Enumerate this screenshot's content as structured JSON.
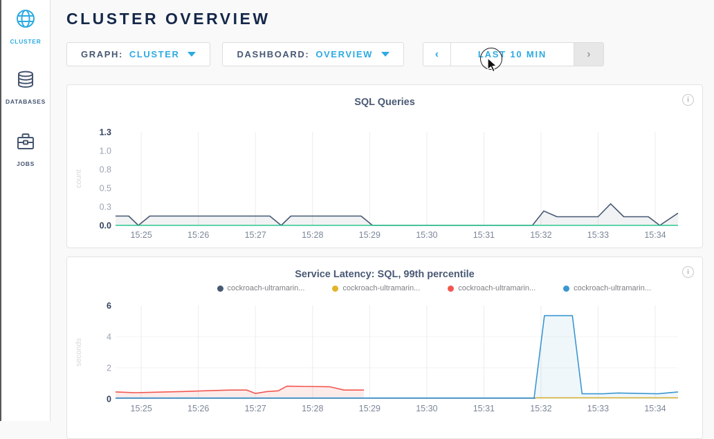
{
  "sidebar": {
    "items": [
      {
        "label": "CLUSTER",
        "icon": "globe-icon",
        "active": true
      },
      {
        "label": "DATABASES",
        "icon": "database-icon",
        "active": false
      },
      {
        "label": "JOBS",
        "icon": "briefcase-icon",
        "active": false
      }
    ]
  },
  "header": {
    "title": "CLUSTER OVERVIEW"
  },
  "controls": {
    "graph": {
      "label": "GRAPH:",
      "value": "CLUSTER"
    },
    "dashboard": {
      "label": "DASHBOARD:",
      "value": "OVERVIEW"
    },
    "time_range": {
      "prev": "‹",
      "label": "LAST 10 MIN",
      "next": "›",
      "next_disabled": true
    }
  },
  "colors": {
    "accent_blue": "#2daae1",
    "navy_text": "#152849",
    "slate": "#475872",
    "series_navy": "#475872",
    "series_green": "#29c78f",
    "series_red": "#f2574f",
    "series_yellow": "#e3b32a",
    "series_blue": "#3a97d1"
  },
  "chart_data": [
    {
      "type": "line",
      "title": "SQL Queries",
      "ylabel": "count",
      "xlabel": "",
      "ylim": [
        0,
        1.3
      ],
      "xlim": [
        24.55,
        34.4
      ],
      "grid": "vertical",
      "hgrid": [],
      "yticks": [
        {
          "v": 0,
          "label": "0.0",
          "strong": true
        },
        {
          "v": 0.26,
          "label": "0.3",
          "strong": false
        },
        {
          "v": 0.52,
          "label": "0.5",
          "strong": false
        },
        {
          "v": 0.78,
          "label": "0.8",
          "strong": false
        },
        {
          "v": 1.04,
          "label": "1.0",
          "strong": false
        },
        {
          "v": 1.3,
          "label": "1.3",
          "strong": true
        }
      ],
      "xticks": [
        {
          "m": 25,
          "label": "15:25"
        },
        {
          "m": 26,
          "label": "15:26"
        },
        {
          "m": 27,
          "label": "15:27"
        },
        {
          "m": 28,
          "label": "15:28"
        },
        {
          "m": 29,
          "label": "15:29"
        },
        {
          "m": 30,
          "label": "15:30"
        },
        {
          "m": 31,
          "label": "15:31"
        },
        {
          "m": 32,
          "label": "15:32"
        },
        {
          "m": 33,
          "label": "15:33"
        },
        {
          "m": 34,
          "label": "15:34"
        }
      ],
      "series": [
        {
          "name": "queries-per-second",
          "color": "#475872",
          "fill": "rgba(71,88,114,0.08)",
          "points": [
            [
              24.55,
              0.13
            ],
            [
              24.78,
              0.13
            ],
            [
              24.95,
              0
            ],
            [
              25.15,
              0.13
            ],
            [
              27.25,
              0.13
            ],
            [
              27.45,
              0
            ],
            [
              27.62,
              0.13
            ],
            [
              28.85,
              0.13
            ],
            [
              29.05,
              0
            ],
            [
              31.85,
              0
            ],
            [
              32.05,
              0.2
            ],
            [
              32.28,
              0.12
            ],
            [
              33.0,
              0.12
            ],
            [
              33.22,
              0.3
            ],
            [
              33.45,
              0.12
            ],
            [
              33.88,
              0.12
            ],
            [
              34.08,
              0
            ],
            [
              34.4,
              0.17
            ]
          ]
        },
        {
          "name": "zero-baseline",
          "color": "#29c78f",
          "fill": "none",
          "points": [
            [
              24.55,
              0
            ],
            [
              34.4,
              0
            ]
          ]
        }
      ]
    },
    {
      "type": "line",
      "title": "Service Latency: SQL, 99th percentile",
      "ylabel": "seconds",
      "xlabel": "",
      "ylim": [
        0,
        6
      ],
      "xlim": [
        24.55,
        34.4
      ],
      "grid": "vertical",
      "hgrid": [
        2,
        4
      ],
      "yticks": [
        {
          "v": 0,
          "label": "0",
          "strong": true
        },
        {
          "v": 2,
          "label": "2",
          "strong": false
        },
        {
          "v": 4,
          "label": "4",
          "strong": false
        },
        {
          "v": 6,
          "label": "6",
          "strong": true
        }
      ],
      "xticks": [
        {
          "m": 25,
          "label": "15:25"
        },
        {
          "m": 26,
          "label": "15:26"
        },
        {
          "m": 27,
          "label": "15:27"
        },
        {
          "m": 28,
          "label": "15:28"
        },
        {
          "m": 29,
          "label": "15:29"
        },
        {
          "m": 30,
          "label": "15:30"
        },
        {
          "m": 31,
          "label": "15:31"
        },
        {
          "m": 32,
          "label": "15:32"
        },
        {
          "m": 33,
          "label": "15:33"
        },
        {
          "m": 34,
          "label": "15:34"
        }
      ],
      "legend": [
        {
          "label": "cockroach-ultramarin...",
          "color": "#475872"
        },
        {
          "label": "cockroach-ultramarin...",
          "color": "#e3b32a"
        },
        {
          "label": "cockroach-ultramarin...",
          "color": "#f2574f"
        },
        {
          "label": "cockroach-ultramarin...",
          "color": "#3a97d1"
        }
      ],
      "series": [
        {
          "name": "node-navy",
          "color": "#475872",
          "fill": "none",
          "points": [
            [
              24.55,
              0.05
            ],
            [
              31.9,
              0.05
            ]
          ]
        },
        {
          "name": "node-red",
          "color": "#f2574f",
          "fill": "rgba(242,87,79,0.12)",
          "points": [
            [
              24.55,
              0.45
            ],
            [
              24.9,
              0.4
            ],
            [
              25.25,
              0.43
            ],
            [
              25.7,
              0.47
            ],
            [
              26.1,
              0.52
            ],
            [
              26.55,
              0.57
            ],
            [
              26.85,
              0.57
            ],
            [
              27.0,
              0.35
            ],
            [
              27.2,
              0.47
            ],
            [
              27.4,
              0.52
            ],
            [
              27.55,
              0.82
            ],
            [
              27.9,
              0.8
            ],
            [
              28.3,
              0.78
            ],
            [
              28.55,
              0.57
            ],
            [
              28.9,
              0.57
            ]
          ]
        },
        {
          "name": "node-yellow",
          "color": "#e3b32a",
          "fill": "none",
          "points": [
            [
              31.9,
              0.07
            ],
            [
              34.4,
              0.07
            ]
          ]
        },
        {
          "name": "node-blue",
          "color": "#3a97d1",
          "fill": "rgba(58,151,209,0.08)",
          "points": [
            [
              24.55,
              0.06
            ],
            [
              31.88,
              0.06
            ],
            [
              32.06,
              5.35
            ],
            [
              32.55,
              5.35
            ],
            [
              32.72,
              0.33
            ],
            [
              33.1,
              0.33
            ],
            [
              33.35,
              0.38
            ],
            [
              33.7,
              0.35
            ],
            [
              34.05,
              0.33
            ],
            [
              34.4,
              0.45
            ]
          ]
        }
      ]
    }
  ]
}
